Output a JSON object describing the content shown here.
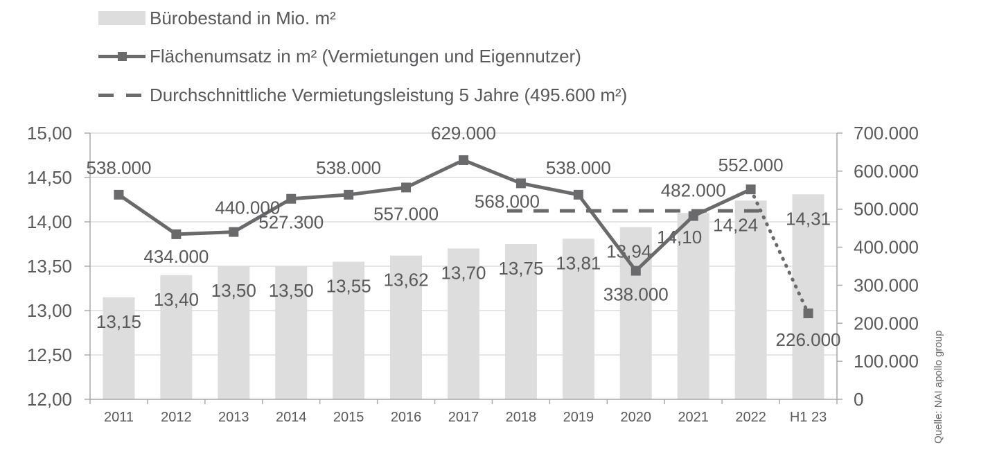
{
  "legend": {
    "bars": "Bürobestand in Mio. m²",
    "line": "Flächenumsatz in m² (Vermietungen und Eigennutzer)",
    "average": "Durchschnittliche Vermietungsleistung 5 Jahre (495.600 m²)"
  },
  "source": "Quelle: NAI apollo group",
  "colors": {
    "bar": "#dddddd",
    "line": "#6a6a6c",
    "text": "#58595b",
    "axis": "#aaaaaa"
  },
  "chart_data": {
    "type": "bar",
    "categories": [
      "2011",
      "2012",
      "2013",
      "2014",
      "2015",
      "2016",
      "2017",
      "2018",
      "2019",
      "2020",
      "2021",
      "2022",
      "H1 23"
    ],
    "series": [
      {
        "name": "Bürobestand in Mio. m²",
        "type": "bar",
        "axis": "left",
        "values": [
          13.15,
          13.4,
          13.5,
          13.5,
          13.55,
          13.62,
          13.7,
          13.75,
          13.81,
          13.94,
          14.1,
          14.24,
          14.31
        ],
        "labels": [
          "13,15",
          "13,40",
          "13,50",
          "13,50",
          "13,55",
          "13,62",
          "13,70",
          "13,75",
          "13,81",
          "13,94",
          "14,10",
          "14,24",
          "14,31"
        ]
      },
      {
        "name": "Flächenumsatz in m² (Vermietungen und Eigennutzer)",
        "type": "line",
        "axis": "right",
        "values": [
          538000,
          434000,
          440000,
          527300,
          538000,
          557000,
          629000,
          568000,
          538000,
          338000,
          482000,
          552000,
          226000
        ],
        "labels": [
          "538.000",
          "434.000",
          "440.000",
          "527.300",
          "538.000",
          "557.000",
          "629.000",
          "568.000",
          "538.000",
          "338.000",
          "482.000",
          "552.000",
          "226.000"
        ]
      },
      {
        "name": "Durchschnittliche Vermietungsleistung 5 Jahre (495.600 m²)",
        "type": "reference-line",
        "axis": "right",
        "value": 495600,
        "from": "2018",
        "to": "2022"
      }
    ],
    "y_left": {
      "range": [
        12,
        15
      ],
      "ticks": [
        12,
        12.5,
        13,
        13.5,
        14,
        14.5,
        15
      ],
      "tick_labels": [
        "12,00",
        "12,50",
        "13,00",
        "13,50",
        "14,00",
        "14,50",
        "15,00"
      ]
    },
    "y_right": {
      "range": [
        0,
        700000
      ],
      "ticks": [
        0,
        100000,
        200000,
        300000,
        400000,
        500000,
        600000,
        700000
      ],
      "tick_labels": [
        "0",
        "100.000",
        "200.000",
        "300.000",
        "400.000",
        "500.000",
        "600.000",
        "700.000"
      ]
    },
    "grid": true
  }
}
